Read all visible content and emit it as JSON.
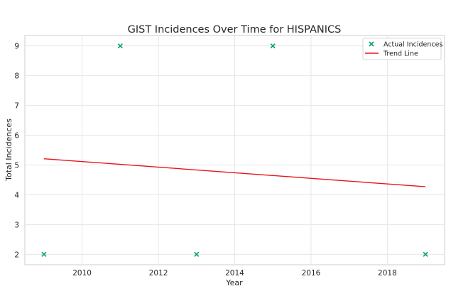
{
  "chart_data": {
    "type": "scatter",
    "title": "GIST Incidences Over Time for HISPANICS",
    "xlabel": "Year",
    "ylabel": "Total Incidences",
    "xlim": [
      2008.5,
      2019.5
    ],
    "ylim": [
      1.65,
      9.35
    ],
    "x_ticks": [
      2010,
      2012,
      2014,
      2016,
      2018
    ],
    "y_ticks": [
      2,
      3,
      4,
      5,
      6,
      7,
      8,
      9
    ],
    "grid": true,
    "legend_position": "top-right",
    "series": [
      {
        "name": "Actual Incidences",
        "type": "scatter",
        "marker": "x",
        "color": "#009E73",
        "x": [
          2009,
          2011,
          2013,
          2015,
          2019
        ],
        "y": [
          2,
          9,
          2,
          9,
          2
        ]
      },
      {
        "name": "Trend Line",
        "type": "line",
        "color": "#E8141B",
        "x": [
          2009,
          2019
        ],
        "y": [
          5.21,
          4.27
        ]
      }
    ]
  }
}
